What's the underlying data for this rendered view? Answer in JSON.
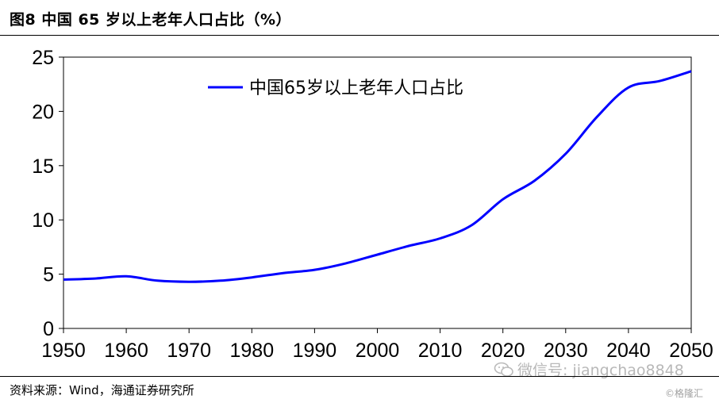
{
  "header": {
    "title": "图8   中国 65 岁以上老年人口占比（%）"
  },
  "footer": {
    "source": "资料来源：Wind，海通证券研究所",
    "watermark": "微信号: jiangchao8848",
    "watermark_icon": "wechat-icon",
    "watermark_brand": "©格隆汇"
  },
  "chart_data": {
    "type": "line",
    "title": "",
    "xlabel": "",
    "ylabel": "",
    "xlim": [
      1950,
      2050
    ],
    "ylim": [
      0,
      25
    ],
    "x_ticks": [
      "1950",
      "1960",
      "1970",
      "1980",
      "1990",
      "2000",
      "2010",
      "2020",
      "2030",
      "2040",
      "2050"
    ],
    "y_ticks": [
      "0",
      "5",
      "10",
      "15",
      "20",
      "25"
    ],
    "grid": false,
    "legend": "top-left",
    "series": [
      {
        "name": "中国65岁以上老年人口占比",
        "color": "#0000ff",
        "x": [
          1950,
          1955,
          1960,
          1965,
          1970,
          1975,
          1980,
          1985,
          1990,
          1995,
          2000,
          2005,
          2010,
          2015,
          2020,
          2025,
          2030,
          2035,
          2040,
          2045,
          2050
        ],
        "y": [
          4.5,
          4.6,
          4.8,
          4.4,
          4.3,
          4.4,
          4.7,
          5.1,
          5.4,
          6.0,
          6.8,
          7.6,
          8.3,
          9.5,
          11.9,
          13.6,
          16.1,
          19.5,
          22.2,
          22.8,
          23.7
        ]
      }
    ]
  }
}
